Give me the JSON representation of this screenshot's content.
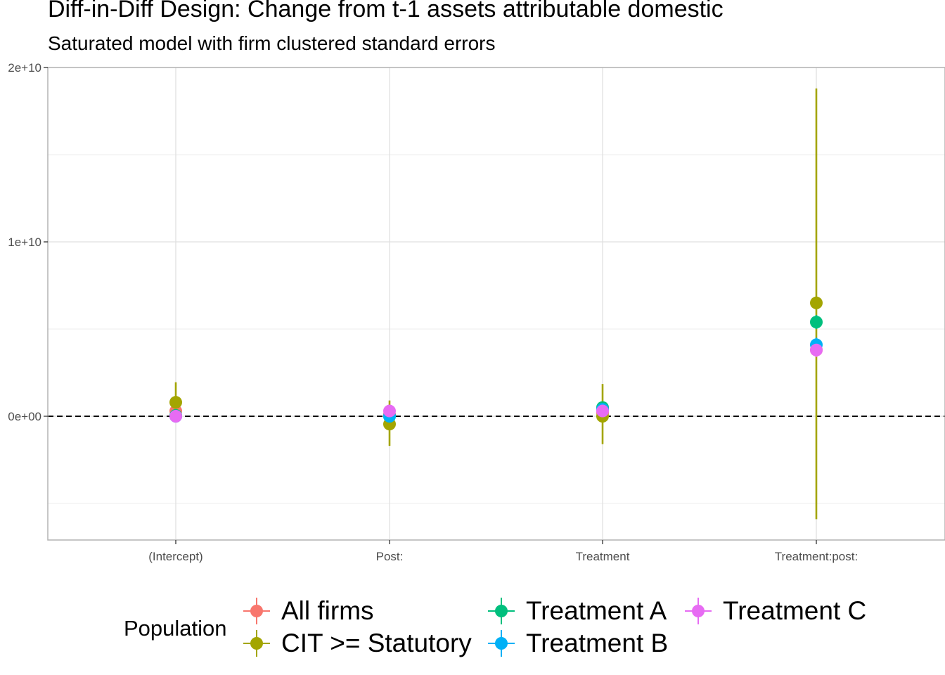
{
  "chart_data": {
    "type": "scatter",
    "title": "Diff-in-Diff Design: Change from t-1 assets attributable domestic",
    "subtitle": "Saturated model with firm clustered standard errors",
    "xlabel": "",
    "ylabel": "",
    "categories": [
      "(Intercept)",
      "Post:",
      "Treatment",
      "Treatment:post:"
    ],
    "ylim": [
      -7000000000,
      20000000000
    ],
    "y_ticks": [
      0,
      10000000000,
      20000000000
    ],
    "y_tick_labels": [
      "0e+00",
      "1e+10",
      "2e+10"
    ],
    "reference_line": {
      "y": 0,
      "style": "dashed"
    },
    "grid": true,
    "legend": {
      "title": "Population",
      "position": "bottom"
    },
    "series": [
      {
        "name": "All firms",
        "color": "#F8766D",
        "values": [
          300000000,
          100000000,
          200000000,
          3800000000
        ],
        "lower": [
          100000000,
          -200000000,
          -100000000,
          3500000000
        ],
        "upper": [
          500000000,
          400000000,
          500000000,
          4100000000
        ]
      },
      {
        "name": "CIT >= Statutory",
        "color": "#A3A500",
        "values": [
          800000000,
          -450000000,
          0,
          6500000000
        ],
        "lower": [
          -300000000,
          -1700000000,
          -1600000000,
          -5900000000
        ],
        "upper": [
          1950000000,
          900000000,
          1850000000,
          18800000000
        ]
      },
      {
        "name": "Treatment A",
        "color": "#00BF7D",
        "values": [
          50000000,
          0,
          500000000,
          5400000000
        ],
        "lower": [
          -150000000,
          -250000000,
          200000000,
          5000000000
        ],
        "upper": [
          250000000,
          250000000,
          800000000,
          5800000000
        ]
      },
      {
        "name": "Treatment B",
        "color": "#00B0F6",
        "values": [
          0,
          0,
          400000000,
          4100000000
        ],
        "lower": [
          -200000000,
          -250000000,
          100000000,
          3700000000
        ],
        "upper": [
          200000000,
          250000000,
          700000000,
          4500000000
        ]
      },
      {
        "name": "Treatment C",
        "color": "#E76BF3",
        "values": [
          0,
          300000000,
          300000000,
          3800000000
        ],
        "lower": [
          -200000000,
          50000000,
          0,
          3400000000
        ],
        "upper": [
          200000000,
          550000000,
          600000000,
          4200000000
        ]
      }
    ]
  }
}
